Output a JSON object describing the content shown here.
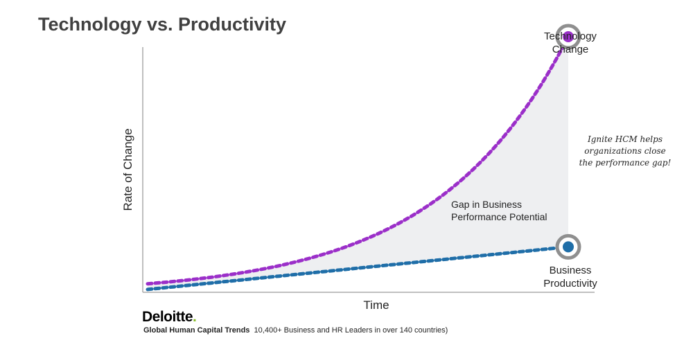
{
  "chart_data": {
    "type": "line",
    "title": "Technology vs. Productivity",
    "xlabel": "Time",
    "ylabel": "Rate of Change",
    "series": [
      {
        "name": "Technology Change",
        "color": "#9b2fc9",
        "style": "dashed",
        "shape": "exponential",
        "start": 0.03,
        "end": 0.9
      },
      {
        "name": "Business Productivity",
        "color": "#1f6ea8",
        "style": "dashed",
        "shape": "linear",
        "start": 0.01,
        "end": 0.16
      }
    ],
    "annotations": {
      "gap": "Gap in Business Performance Potential",
      "gap_line1": "Gap in Business",
      "gap_line2": "Performance Potential",
      "note_line1": "Ignite HCM helps",
      "note_line2": "organizations close",
      "note_line3": "the performance gap!"
    },
    "end_labels": {
      "tech_line1": "Technology",
      "tech_line2": "Change",
      "prod_line1": "Business",
      "prod_line2": "Productivity"
    },
    "colors": {
      "gap_fill": "#eeeff1",
      "marker_ring": "#8f8f8f",
      "axis": "#aaaaaa"
    },
    "grid": false
  },
  "source": {
    "logo": "Deloitte",
    "logo_dot": ".",
    "bold": "Global Human Capital Trends",
    "text": "10,400+ Business and HR Leaders in over 140 countries)"
  }
}
